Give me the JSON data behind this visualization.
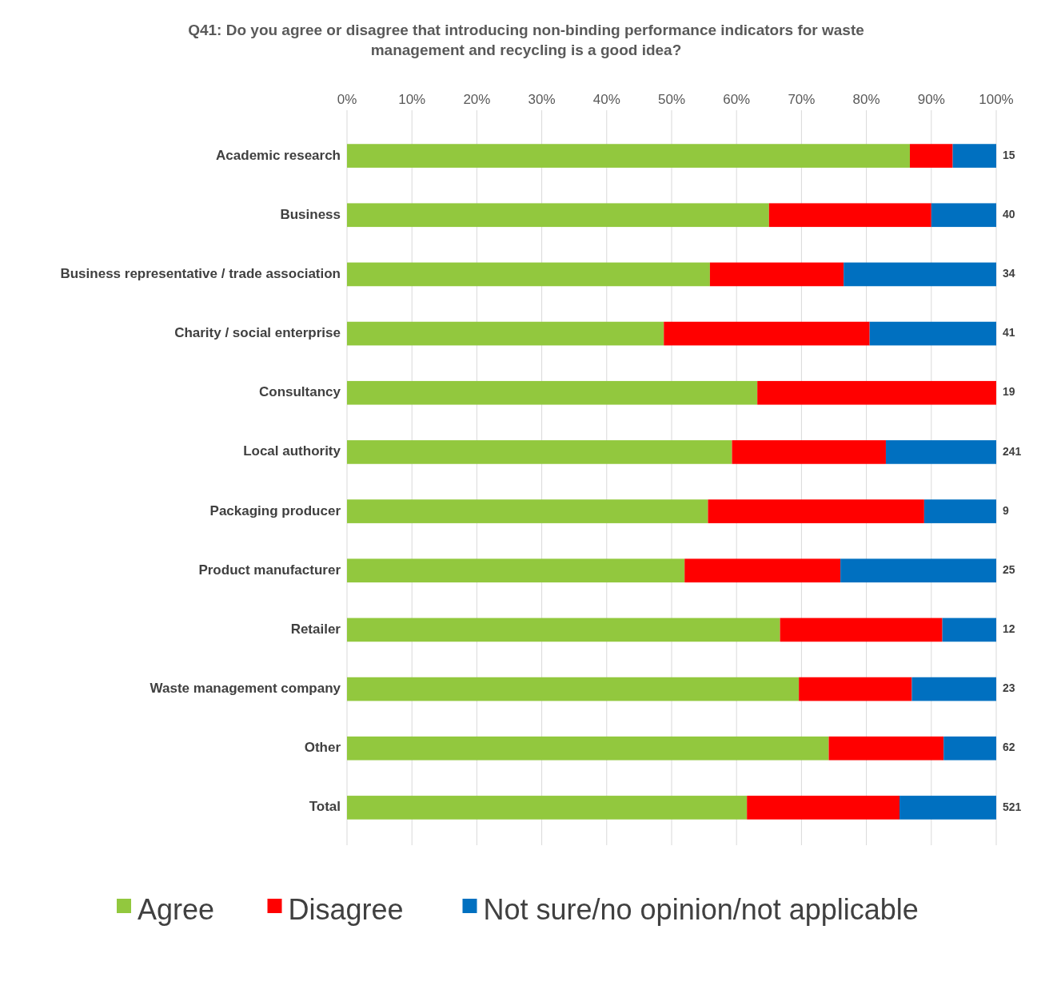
{
  "chart_data": {
    "type": "bar",
    "orientation": "horizontal",
    "stacked": true,
    "title": "Q41: Do you agree or disagree that introducing non-binding performance indicators for waste management and recycling is a good idea?",
    "categories": [
      "Academic research",
      "Business",
      "Business representative / trade association",
      "Charity / social enterprise",
      "Consultancy",
      "Local authority",
      "Packaging producer",
      "Product manufacturer",
      "Retailer",
      "Waste management company",
      "Other",
      "Total"
    ],
    "series": [
      {
        "name": "Agree",
        "color": "#92c83e",
        "values": [
          86.7,
          65,
          55.9,
          48.8,
          63.2,
          59.3,
          55.6,
          52,
          66.7,
          69.6,
          74.2,
          61.6
        ]
      },
      {
        "name": "Disagree",
        "color": "#ff0000",
        "values": [
          6.6,
          25,
          20.6,
          31.7,
          36.8,
          23.7,
          33.3,
          24,
          25,
          17.4,
          17.7,
          23.5
        ]
      },
      {
        "name": "Not sure/no opinion/not applicable",
        "color": "#0070c0",
        "values": [
          6.7,
          10,
          23.5,
          19.5,
          0,
          17,
          11.1,
          24,
          8.3,
          13,
          8.1,
          14.9
        ]
      }
    ],
    "xlim": [
      0,
      100
    ],
    "xticks": [
      {
        "value": 0,
        "label": "0%"
      },
      {
        "value": 10,
        "label": "10%"
      },
      {
        "value": 20,
        "label": "20%"
      },
      {
        "value": 30,
        "label": "30%"
      },
      {
        "value": 40,
        "label": "40%"
      },
      {
        "value": 50,
        "label": "50%"
      },
      {
        "value": 60,
        "label": "60%"
      },
      {
        "value": 70,
        "label": "70%"
      },
      {
        "value": 80,
        "label": "80%"
      },
      {
        "value": 90,
        "label": "90%"
      },
      {
        "value": 100,
        "label": "100%"
      }
    ],
    "grid": "x",
    "legend": "bottom",
    "annotations": [
      "15",
      "40",
      "34",
      "41",
      "19",
      "241",
      "9",
      "25",
      "12",
      "23",
      "62",
      "521"
    ]
  }
}
